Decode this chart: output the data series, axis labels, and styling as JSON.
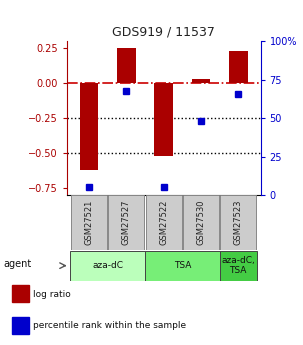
{
  "title": "GDS919 / 11537",
  "samples": [
    "GSM27521",
    "GSM27527",
    "GSM27522",
    "GSM27530",
    "GSM27523"
  ],
  "log_ratios": [
    -0.62,
    0.25,
    -0.52,
    0.03,
    0.23
  ],
  "percentile_ranks": [
    5,
    68,
    5,
    48,
    66
  ],
  "ylim_left": [
    -0.8,
    0.3
  ],
  "ylim_right": [
    0,
    100
  ],
  "yticks_left": [
    0.25,
    0,
    -0.25,
    -0.5,
    -0.75
  ],
  "yticks_right": [
    100,
    75,
    50,
    25,
    0
  ],
  "bar_color": "#AA0000",
  "dot_color": "#0000CC",
  "bar_width": 0.5,
  "agent_groups": [
    {
      "label": "aza-dC",
      "start": 0,
      "end": 2,
      "color": "#BBFFBB"
    },
    {
      "label": "TSA",
      "start": 2,
      "end": 4,
      "color": "#77EE77"
    },
    {
      "label": "aza-dC,\nTSA",
      "start": 4,
      "end": 5,
      "color": "#44CC44"
    }
  ],
  "legend_items": [
    {
      "color": "#AA0000",
      "label": "log ratio"
    },
    {
      "color": "#0000CC",
      "label": "percentile rank within the sample"
    }
  ],
  "hline_zero_color": "#CC0000",
  "hline_dotted_color": "#000000",
  "title_color": "#222222"
}
